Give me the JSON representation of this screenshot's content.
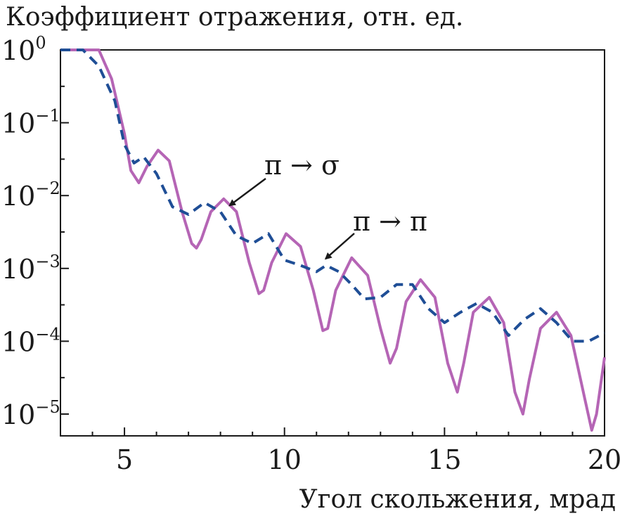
{
  "chart_data": {
    "type": "line",
    "ylabel": "Коэффициент отражения, отн. ед.",
    "xlabel": "Угол скольжения, мрад",
    "xlim": [
      3,
      20
    ],
    "ylim": [
      5e-06,
      1
    ],
    "y_scale": "log",
    "grid": false,
    "legend": "none",
    "x_ticks": [
      5,
      10,
      15,
      20
    ],
    "x_tick_labels": [
      "5",
      "10",
      "15",
      "20"
    ],
    "y_ticks": [
      1,
      0.1,
      0.01,
      0.001,
      0.0001,
      1e-05
    ],
    "y_tick_base": "10",
    "y_tick_exponents": [
      "0",
      "−1",
      "−2",
      "−3",
      "−4",
      "−5"
    ],
    "annotations": [
      {
        "text": "π → σ",
        "series": "solid",
        "arrow_to": [
          8.2,
          0.008
        ]
      },
      {
        "text": "π → π",
        "series": "dashed",
        "arrow_to": [
          11.2,
          0.0013
        ]
      }
    ],
    "series": [
      {
        "style": "solid",
        "color": "#b565b5",
        "x": [
          3.0,
          4.2,
          4.6,
          5.0,
          5.2,
          5.45,
          5.7,
          6.05,
          6.4,
          6.8,
          7.1,
          7.25,
          7.4,
          7.7,
          8.1,
          8.5,
          8.9,
          9.2,
          9.35,
          9.6,
          10.05,
          10.5,
          10.9,
          11.2,
          11.35,
          11.6,
          12.1,
          12.6,
          13.0,
          13.3,
          13.5,
          13.8,
          14.25,
          14.7,
          15.1,
          15.4,
          15.6,
          15.9,
          16.4,
          16.85,
          17.2,
          17.45,
          17.65,
          18.0,
          18.5,
          18.95,
          19.4,
          19.6,
          19.75,
          20.0
        ],
        "y": [
          1.0,
          1.0,
          0.4,
          0.07,
          0.022,
          0.015,
          0.025,
          0.042,
          0.03,
          0.006,
          0.0022,
          0.0019,
          0.0025,
          0.006,
          0.009,
          0.006,
          0.0012,
          0.00045,
          0.0005,
          0.0012,
          0.003,
          0.002,
          0.0005,
          0.00014,
          0.00015,
          0.0005,
          0.0014,
          0.0008,
          0.00015,
          5e-05,
          8e-05,
          0.00035,
          0.0007,
          0.0004,
          5e-05,
          2e-05,
          5e-05,
          0.00025,
          0.0004,
          0.00018,
          2e-05,
          1e-05,
          3e-05,
          0.00015,
          0.00025,
          0.00012,
          1.5e-05,
          6e-06,
          1e-05,
          6e-05
        ]
      },
      {
        "style": "dashed",
        "color": "#1f4e96",
        "x": [
          3.0,
          3.7,
          4.2,
          4.7,
          5.0,
          5.3,
          5.6,
          6.0,
          6.5,
          7.0,
          7.5,
          8.0,
          8.5,
          9.0,
          9.5,
          10.0,
          10.5,
          11.0,
          11.3,
          11.7,
          12.1,
          12.5,
          13.0,
          13.5,
          14.0,
          14.5,
          15.0,
          15.5,
          16.0,
          16.5,
          17.0,
          17.5,
          18.0,
          18.5,
          19.0,
          19.5,
          20.0
        ],
        "y": [
          1.0,
          1.0,
          0.6,
          0.2,
          0.05,
          0.028,
          0.034,
          0.02,
          0.007,
          0.0055,
          0.008,
          0.006,
          0.0028,
          0.0022,
          0.003,
          0.0013,
          0.0011,
          0.0009,
          0.0011,
          0.0009,
          0.0006,
          0.00038,
          0.0004,
          0.0006,
          0.0006,
          0.00028,
          0.00018,
          0.00025,
          0.00033,
          0.00025,
          0.00012,
          0.0002,
          0.00028,
          0.00018,
          0.0001,
          0.0001,
          0.00013
        ]
      }
    ]
  }
}
